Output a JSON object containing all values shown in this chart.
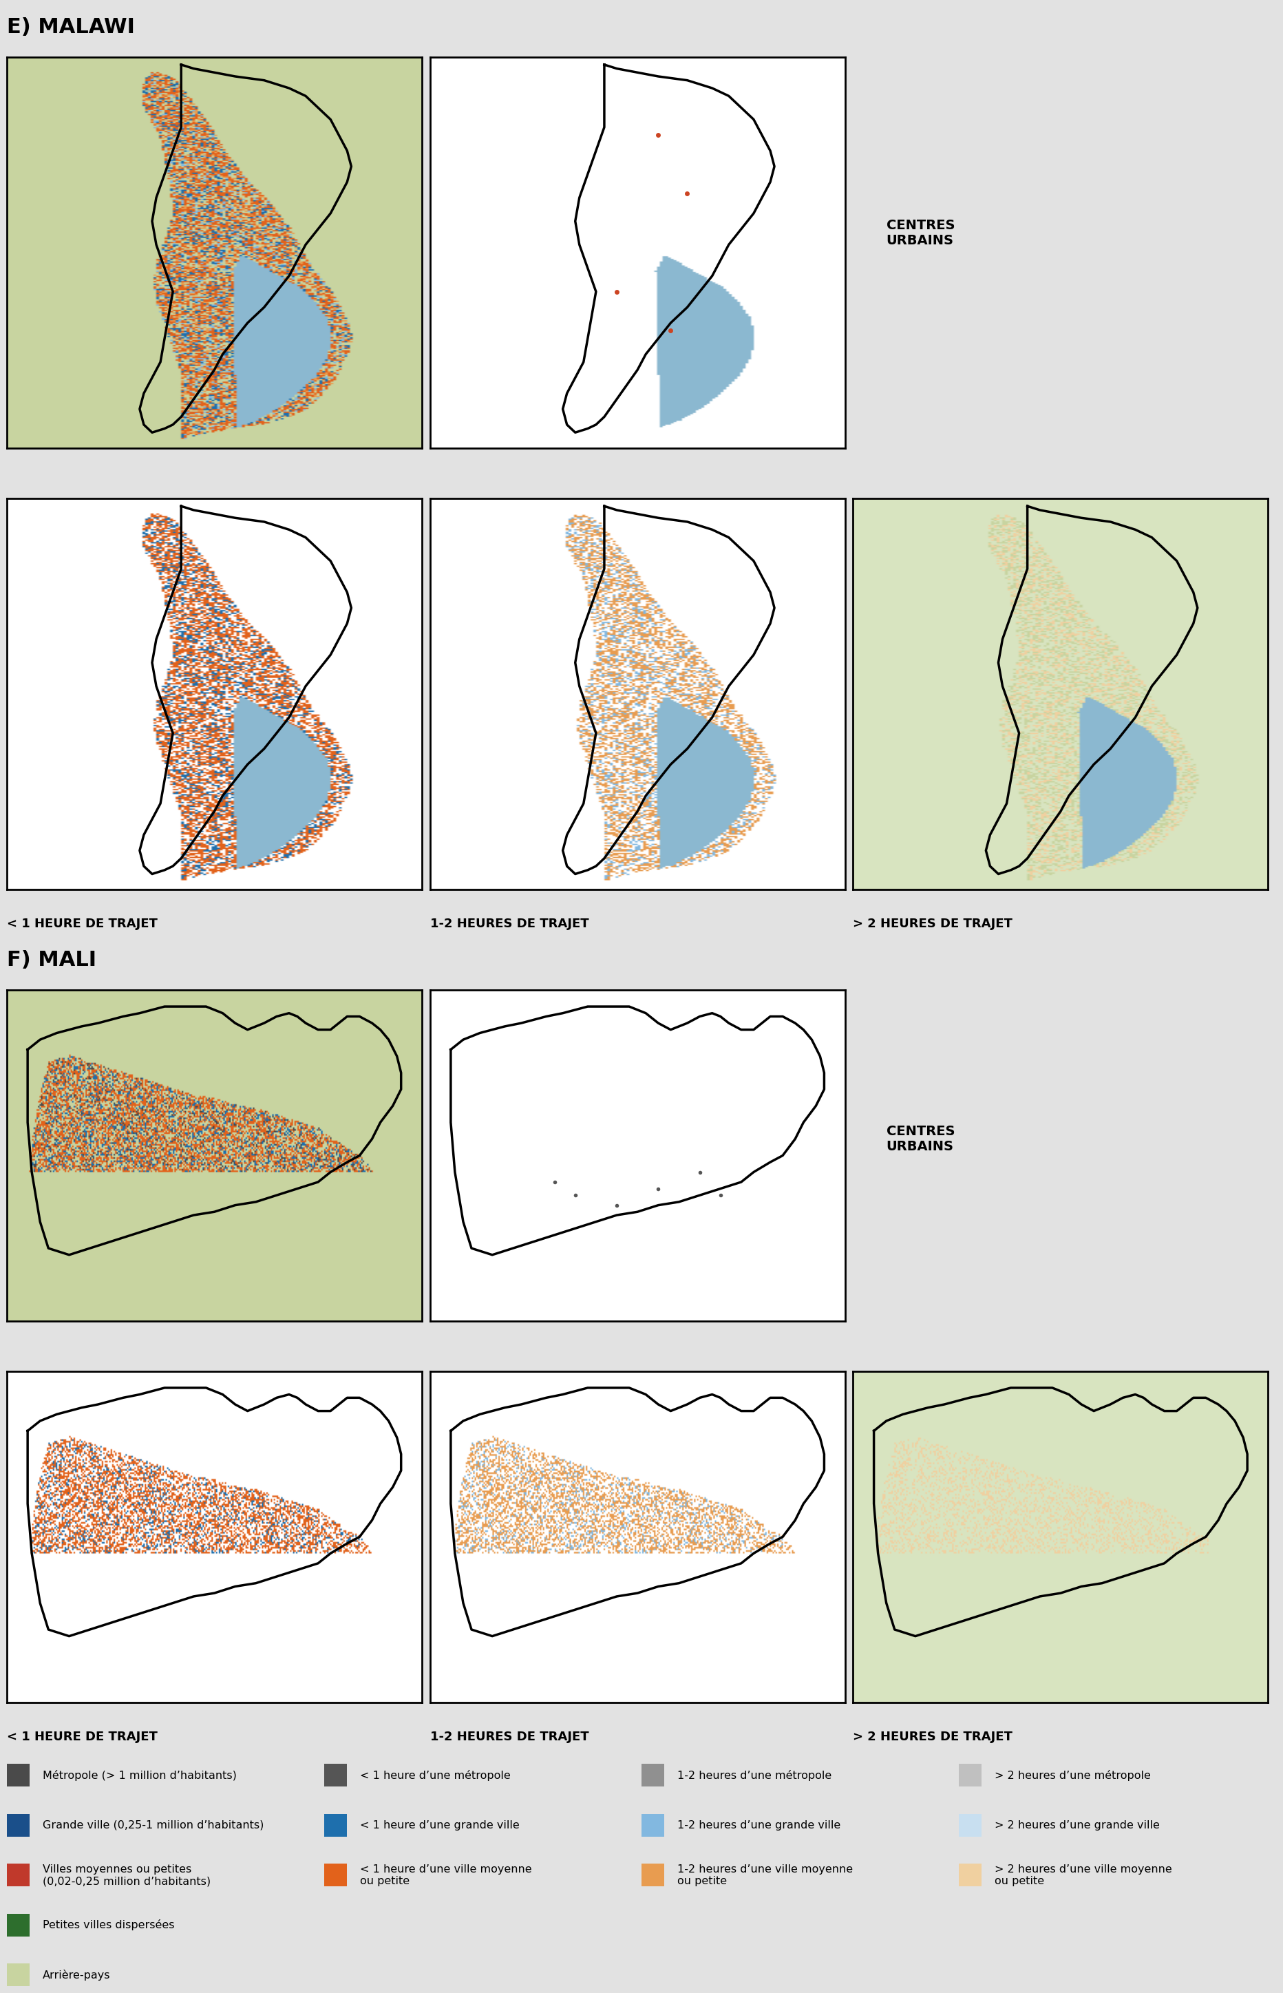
{
  "title_e": "E) MALAWI",
  "title_f": "F) MALI",
  "bg_color": "#e2e2e2",
  "label_centres_urbains": "CENTRES\nURBAINS",
  "label_less1h": "< 1 HEURE DE TRAJET",
  "label_1to2h": "1-2 HEURES DE TRAJET",
  "label_more2h": "> 2 HEURES DE TRAJET",
  "colors": {
    "metropole": "#4a4a4a",
    "grande_ville": "#1a4f8a",
    "villes_moy": "#c0392b",
    "petites_villes": "#2d6e2d",
    "arriere_pays": "#c8d4a0",
    "lt1h_metro": "#555555",
    "lt1h_grande": "#1e6fad",
    "lt1h_moy": "#e2621b",
    "h12_metro": "#909090",
    "h12_grande": "#82b8e0",
    "h12_moy": "#e89c50",
    "gt2h_metro": "#c0c0c0",
    "gt2h_grande": "#c8dff0",
    "gt2h_moy": "#f0d0a0",
    "water": "#8bb8d0",
    "white": "#ffffff",
    "black": "#000000",
    "pale_green_bg": "#d8e4c0"
  },
  "legend_col0": [
    {
      "color": "#4a4a4a",
      "label": "Métropole (> 1 million d’habitants)"
    },
    {
      "color": "#1a4f8a",
      "label": "Grande ville (0,25-1 million d’habitants)"
    },
    {
      "color": "#c0392b",
      "label": "Villes moyennes ou petites\n(0,02-0,25 million d’habitants)"
    },
    {
      "color": "#2d6e2d",
      "label": "Petites villes dispersées"
    },
    {
      "color": "#c8d4a0",
      "label": "Arrière-pays"
    }
  ],
  "legend_col1": [
    {
      "color": "#555555",
      "label": "< 1 heure d’une métropole"
    },
    {
      "color": "#1e6fad",
      "label": "< 1 heure d’une grande ville"
    },
    {
      "color": "#e2621b",
      "label": "< 1 heure d’une ville moyenne\nou petite"
    }
  ],
  "legend_col2": [
    {
      "color": "#909090",
      "label": "1-2 heures d’une métropole"
    },
    {
      "color": "#82b8e0",
      "label": "1-2 heures d’une grande ville"
    },
    {
      "color": "#e89c50",
      "label": "1-2 heures d’une ville moyenne\nou petite"
    }
  ],
  "legend_col3": [
    {
      "color": "#c0c0c0",
      "label": "> 2 heures d’une métropole"
    },
    {
      "color": "#c8dff0",
      "label": "> 2 heures d’une grande ville"
    },
    {
      "color": "#f0d0a0",
      "label": "> 2 heures d’une ville moyenne\nou petite"
    }
  ]
}
